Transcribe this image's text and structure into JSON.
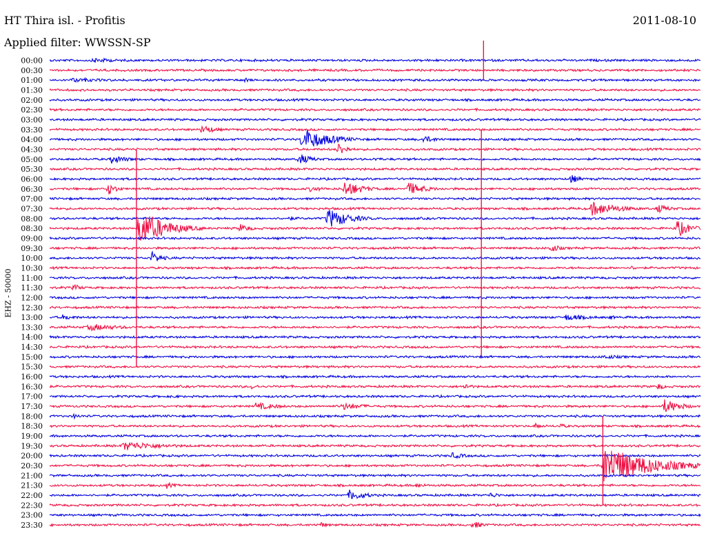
{
  "header": {
    "title": "HT Thira isl. - Profitis",
    "date": "2011-08-10",
    "filter": "Applied filter: WWSSN-SP"
  },
  "channel_label": "EHZ - 50000",
  "colors": {
    "blue": "#0000dd",
    "red": "#ee1144"
  },
  "chart_data": {
    "type": "line",
    "title": "HT Thira isl. - Profitis",
    "subtitle": "Applied filter: WWSSN-SP",
    "date": "2011-08-10",
    "ylabel": "EHZ - 50000",
    "xlabel": "",
    "grid": false,
    "minutes_per_row": 30,
    "row_labels": [
      "00:00",
      "00:30",
      "01:00",
      "01:30",
      "02:00",
      "02:30",
      "03:00",
      "03:30",
      "04:00",
      "04:30",
      "05:00",
      "05:30",
      "06:00",
      "06:30",
      "07:00",
      "07:30",
      "08:00",
      "08:30",
      "09:00",
      "09:30",
      "10:00",
      "10:30",
      "11:00",
      "11:30",
      "12:00",
      "12:30",
      "13:00",
      "13:30",
      "14:00",
      "14:30",
      "15:00",
      "15:30",
      "16:00",
      "16:30",
      "17:00",
      "17:30",
      "18:00",
      "18:30",
      "19:00",
      "19:30",
      "20:00",
      "20:30",
      "21:00",
      "21:30",
      "22:00",
      "22:30",
      "23:00",
      "23:30"
    ],
    "row_colors": [
      "blue",
      "red"
    ],
    "events": [
      {
        "row": "00:00",
        "minute": 2.0,
        "amp": 0.6,
        "dur": 3,
        "color": "blue"
      },
      {
        "row": "00:00",
        "minute": 25.6,
        "amp": 0.3,
        "dur": 1,
        "color": "blue"
      },
      {
        "row": "01:00",
        "minute": 1.0,
        "amp": 0.5,
        "dur": 5,
        "color": "blue"
      },
      {
        "row": "01:00",
        "minute": 8.9,
        "amp": 0.6,
        "dur": 1,
        "color": "blue"
      },
      {
        "row": "03:30",
        "minute": 7.0,
        "amp": 1.1,
        "dur": 1.5,
        "color": "red"
      },
      {
        "row": "04:00",
        "minute": 11.6,
        "amp": 2.6,
        "dur": 3,
        "color": "blue"
      },
      {
        "row": "04:00",
        "minute": 17.2,
        "amp": 0.8,
        "dur": 2,
        "color": "blue"
      },
      {
        "row": "04:30",
        "minute": 13.3,
        "amp": 1.5,
        "dur": 1,
        "color": "red"
      },
      {
        "row": "05:00",
        "minute": 2.8,
        "amp": 1.0,
        "dur": 2,
        "color": "blue"
      },
      {
        "row": "05:00",
        "minute": 11.5,
        "amp": 1.2,
        "dur": 1.5,
        "color": "blue"
      },
      {
        "row": "05:00",
        "minute": 15.0,
        "amp": 0.5,
        "dur": 1,
        "color": "blue"
      },
      {
        "row": "06:00",
        "minute": 24.0,
        "amp": 1.1,
        "dur": 1,
        "color": "blue"
      },
      {
        "row": "06:30",
        "minute": 2.7,
        "amp": 1.3,
        "dur": 1,
        "color": "red"
      },
      {
        "row": "06:30",
        "minute": 12.0,
        "amp": 0.6,
        "dur": 2,
        "color": "red"
      },
      {
        "row": "06:30",
        "minute": 13.6,
        "amp": 1.8,
        "dur": 2,
        "color": "red"
      },
      {
        "row": "06:30",
        "minute": 16.5,
        "amp": 1.5,
        "dur": 2,
        "color": "red"
      },
      {
        "row": "07:30",
        "minute": 25.0,
        "amp": 1.6,
        "dur": 3,
        "color": "red"
      },
      {
        "row": "07:30",
        "minute": 28.0,
        "amp": 1.0,
        "dur": 1.5,
        "color": "red"
      },
      {
        "row": "08:00",
        "minute": 12.8,
        "amp": 2.2,
        "dur": 2.5,
        "color": "blue"
      },
      {
        "row": "08:00",
        "minute": 11.0,
        "amp": 0.4,
        "dur": 2,
        "color": "blue"
      },
      {
        "row": "08:30",
        "minute": 4.1,
        "amp": 4.0,
        "dur": 3,
        "color": "red"
      },
      {
        "row": "08:30",
        "minute": 8.8,
        "amp": 1.0,
        "dur": 1.2,
        "color": "red"
      },
      {
        "row": "08:30",
        "minute": 28.9,
        "amp": 2.0,
        "dur": 1.5,
        "color": "red"
      },
      {
        "row": "09:30",
        "minute": 23.1,
        "amp": 0.9,
        "dur": 1.2,
        "color": "red"
      },
      {
        "row": "10:00",
        "minute": 4.7,
        "amp": 1.4,
        "dur": 1.2,
        "color": "blue"
      },
      {
        "row": "10:30",
        "minute": 26.8,
        "amp": 0.5,
        "dur": 1,
        "color": "red"
      },
      {
        "row": "11:30",
        "minute": 1.1,
        "amp": 0.8,
        "dur": 1,
        "color": "red"
      },
      {
        "row": "13:00",
        "minute": 0.6,
        "amp": 0.6,
        "dur": 2,
        "color": "blue"
      },
      {
        "row": "13:00",
        "minute": 23.8,
        "amp": 0.7,
        "dur": 3,
        "color": "blue"
      },
      {
        "row": "13:00",
        "minute": 25.8,
        "amp": 0.5,
        "dur": 1,
        "color": "blue"
      },
      {
        "row": "13:30",
        "minute": 1.8,
        "amp": 0.8,
        "dur": 4,
        "color": "red"
      },
      {
        "row": "15:00",
        "minute": 25.5,
        "amp": 0.5,
        "dur": 3,
        "color": "blue"
      },
      {
        "row": "16:30",
        "minute": 9.3,
        "amp": 0.6,
        "dur": 1,
        "color": "red"
      },
      {
        "row": "16:30",
        "minute": 19.1,
        "amp": 0.8,
        "dur": 1,
        "color": "red"
      },
      {
        "row": "16:30",
        "minute": 28.0,
        "amp": 0.8,
        "dur": 1,
        "color": "red"
      },
      {
        "row": "17:00",
        "minute": 5.6,
        "amp": 0.5,
        "dur": 1,
        "color": "blue"
      },
      {
        "row": "17:30",
        "minute": 9.5,
        "amp": 0.8,
        "dur": 3,
        "color": "red"
      },
      {
        "row": "17:30",
        "minute": 13.5,
        "amp": 0.8,
        "dur": 3,
        "color": "red"
      },
      {
        "row": "17:30",
        "minute": 28.3,
        "amp": 1.6,
        "dur": 2,
        "color": "red"
      },
      {
        "row": "18:00",
        "minute": 1.1,
        "amp": 0.5,
        "dur": 1.5,
        "color": "blue"
      },
      {
        "row": "18:30",
        "minute": 22.4,
        "amp": 0.6,
        "dur": 1,
        "color": "red"
      },
      {
        "row": "18:30",
        "minute": 23.5,
        "amp": 0.6,
        "dur": 1,
        "color": "red"
      },
      {
        "row": "19:30",
        "minute": 3.4,
        "amp": 1.0,
        "dur": 5,
        "color": "red"
      },
      {
        "row": "20:00",
        "minute": 18.5,
        "amp": 0.7,
        "dur": 2,
        "color": "blue"
      },
      {
        "row": "20:30",
        "minute": 25.5,
        "amp": 4.5,
        "dur": 5,
        "color": "red"
      },
      {
        "row": "21:30",
        "minute": 5.4,
        "amp": 0.7,
        "dur": 1,
        "color": "red"
      },
      {
        "row": "21:30",
        "minute": 16.8,
        "amp": 0.5,
        "dur": 2,
        "color": "red"
      },
      {
        "row": "22:00",
        "minute": 13.8,
        "amp": 1.2,
        "dur": 2,
        "color": "blue"
      },
      {
        "row": "22:00",
        "minute": 20.3,
        "amp": 0.6,
        "dur": 1.5,
        "color": "blue"
      },
      {
        "row": "23:30",
        "minute": 12.5,
        "amp": 0.6,
        "dur": 1,
        "color": "red"
      },
      {
        "row": "23:30",
        "minute": 19.5,
        "amp": 0.8,
        "dur": 1.5,
        "color": "red"
      }
    ],
    "spikes": [
      {
        "row": "08:30",
        "minute": 4.0,
        "up": 8,
        "down": 14,
        "color": "red"
      },
      {
        "row": "08:00",
        "minute": 19.9,
        "up": 9,
        "down": 14,
        "color": "red"
      },
      {
        "row": "00:30",
        "minute": 20.0,
        "up": 3,
        "down": 1,
        "color": "red"
      },
      {
        "row": "20:30",
        "minute": 25.5,
        "up": 5,
        "down": 4,
        "color": "red"
      }
    ]
  }
}
